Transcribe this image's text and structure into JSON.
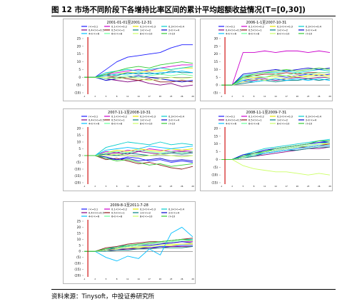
{
  "figure": {
    "title": "图 12  市场不同阶段下各增持比率区间的累计平均超额收益情况(T=[0,30])",
    "source": "资料来源：Tinysoft，中投证券研究所"
  },
  "legend_labels": [
    "r<=0.1",
    "0.1<r<=0.2",
    "0.2<r<=0.3",
    "0.3<r<=0.4",
    "0.4<r<=0.5",
    "0.5<r<=1",
    "1<r<=2",
    "2<r<=4",
    "4<r<=6",
    "6<r<=8",
    "8<r<=10",
    "r>10"
  ],
  "colors": {
    "series": [
      "#1a1aff",
      "#cc00cc",
      "#e6e600",
      "#00cccc",
      "#800080",
      "#8b1a1a",
      "#008080",
      "#0000cc",
      "#00bfff",
      "#66ff99",
      "#ccff66",
      "#33cc33"
    ],
    "event_line": "#cc0000",
    "frame": "#888888"
  },
  "chart_data": [
    {
      "type": "line",
      "title": "2001-01-01至2001-12-31",
      "x_ticks": [
        "-1",
        "2",
        "5",
        "8",
        "11",
        "14",
        "17",
        "20",
        "23",
        "26",
        "29"
      ],
      "x": [
        -1,
        2,
        5,
        8,
        11,
        14,
        17,
        20,
        23,
        26,
        29
      ],
      "ylim": [
        -10,
        25
      ],
      "y_ticks": [
        "25",
        "20",
        "15",
        "10",
        "5",
        "0",
        "(5)",
        "(10)"
      ],
      "y_tick_values": [
        25,
        20,
        15,
        10,
        5,
        0,
        -5,
        -10
      ],
      "event_x": 0,
      "legend": true,
      "series": [
        {
          "color_index": 0,
          "values": [
            0,
            0,
            5,
            10,
            13,
            14,
            15,
            16,
            19,
            21,
            21
          ]
        },
        {
          "color_index": 1,
          "values": [
            0,
            0,
            2,
            3,
            4,
            5,
            4,
            6,
            7,
            8,
            8
          ]
        },
        {
          "color_index": 2,
          "values": [
            0,
            0,
            1,
            2,
            3,
            3,
            4,
            4,
            5,
            6,
            6
          ]
        },
        {
          "color_index": 3,
          "values": [
            0,
            0,
            3,
            4,
            5,
            4,
            5,
            6,
            5,
            6,
            7
          ]
        },
        {
          "color_index": 4,
          "values": [
            0,
            0,
            -1,
            -2,
            -3,
            -2,
            -4,
            -5,
            -4,
            -6,
            -5
          ]
        },
        {
          "color_index": 5,
          "values": [
            0,
            0,
            1,
            0,
            -1,
            -2,
            -1,
            -3,
            -3,
            -2,
            -3
          ]
        },
        {
          "color_index": 6,
          "values": [
            0,
            0,
            2,
            1,
            3,
            2,
            3,
            2,
            4,
            3,
            3
          ]
        },
        {
          "color_index": 7,
          "values": [
            0,
            0,
            -2,
            -1,
            0,
            1,
            0,
            -1,
            -2,
            -3,
            -2
          ]
        },
        {
          "color_index": 8,
          "values": [
            0,
            0,
            1,
            2,
            2,
            3,
            2,
            3,
            3,
            4,
            3
          ]
        },
        {
          "color_index": 9,
          "values": [
            0,
            0,
            -1,
            0,
            1,
            0,
            1,
            2,
            1,
            2,
            1
          ]
        },
        {
          "color_index": 10,
          "values": [
            0,
            0,
            0,
            -1,
            0,
            -1,
            -2,
            -1,
            0,
            -1,
            0
          ]
        },
        {
          "color_index": 11,
          "values": [
            0,
            0,
            2,
            4,
            6,
            7,
            6,
            8,
            9,
            10,
            9
          ]
        }
      ]
    },
    {
      "type": "line",
      "title": "2006-1-1至2007-10-31",
      "x_ticks": [
        "-1",
        "2",
        "5",
        "8",
        "11",
        "14",
        "17",
        "20",
        "23",
        "26",
        "29"
      ],
      "x": [
        -1,
        2,
        5,
        8,
        11,
        14,
        17,
        20,
        23,
        26,
        29
      ],
      "ylim": [
        -5,
        30
      ],
      "y_ticks": [
        "30",
        "25",
        "20",
        "15",
        "10",
        "5",
        "0",
        "(5)"
      ],
      "y_tick_values": [
        30,
        25,
        20,
        15,
        10,
        5,
        0,
        -5
      ],
      "event_x": 0,
      "legend": true,
      "series": [
        {
          "color_index": 0,
          "values": [
            0,
            0,
            3,
            4,
            5,
            6,
            5,
            6,
            7,
            6,
            7
          ]
        },
        {
          "color_index": 1,
          "values": [
            0,
            0,
            21,
            21,
            22,
            21,
            22,
            22,
            21,
            22,
            21
          ]
        },
        {
          "color_index": 2,
          "values": [
            0,
            0,
            4,
            5,
            5,
            6,
            6,
            5,
            6,
            7,
            6
          ]
        },
        {
          "color_index": 3,
          "values": [
            0,
            0,
            6,
            7,
            8,
            8,
            9,
            8,
            9,
            10,
            9
          ]
        },
        {
          "color_index": 4,
          "values": [
            0,
            0,
            2,
            3,
            4,
            3,
            4,
            5,
            4,
            5,
            5
          ]
        },
        {
          "color_index": 5,
          "values": [
            0,
            0,
            5,
            6,
            7,
            7,
            8,
            7,
            8,
            8,
            8
          ]
        },
        {
          "color_index": 6,
          "values": [
            0,
            0,
            1,
            2,
            3,
            2,
            3,
            3,
            4,
            3,
            4
          ]
        },
        {
          "color_index": 7,
          "values": [
            0,
            0,
            7,
            8,
            9,
            10,
            9,
            10,
            11,
            10,
            11
          ]
        },
        {
          "color_index": 8,
          "values": [
            0,
            0,
            3,
            2,
            3,
            4,
            3,
            4,
            3,
            4,
            3
          ]
        },
        {
          "color_index": 9,
          "values": [
            0,
            0,
            4,
            6,
            5,
            7,
            6,
            8,
            7,
            8,
            8
          ]
        },
        {
          "color_index": 10,
          "values": [
            0,
            0,
            2,
            4,
            3,
            5,
            4,
            6,
            5,
            6,
            5
          ]
        },
        {
          "color_index": 11,
          "values": [
            0,
            0,
            5,
            7,
            8,
            9,
            10,
            9,
            10,
            11,
            10
          ]
        }
      ]
    },
    {
      "type": "line",
      "title": "2007-11-1至2008-10-31",
      "x_ticks": [
        "-1",
        "2",
        "5",
        "8",
        "11",
        "14",
        "17",
        "20",
        "23",
        "26",
        "29"
      ],
      "x": [
        -1,
        2,
        5,
        8,
        11,
        14,
        17,
        20,
        23,
        26,
        29
      ],
      "ylim": [
        -20,
        20
      ],
      "y_ticks": [
        "20",
        "15",
        "10",
        "5",
        "0",
        "(5)",
        "(10)",
        "(15)",
        "(20)"
      ],
      "y_tick_values": [
        20,
        15,
        10,
        5,
        0,
        -5,
        -10,
        -15,
        -20
      ],
      "event_x": 0,
      "legend": true,
      "series": [
        {
          "color_index": 0,
          "values": [
            0,
            0,
            -2,
            -3,
            -1,
            -2,
            -4,
            -3,
            -5,
            -4,
            -5
          ]
        },
        {
          "color_index": 1,
          "values": [
            0,
            0,
            3,
            2,
            4,
            3,
            5,
            4,
            3,
            4,
            3
          ]
        },
        {
          "color_index": 2,
          "values": [
            0,
            0,
            2,
            4,
            3,
            5,
            4,
            3,
            5,
            4,
            5
          ]
        },
        {
          "color_index": 3,
          "values": [
            0,
            0,
            6,
            8,
            10,
            9,
            8,
            10,
            8,
            9,
            8
          ]
        },
        {
          "color_index": 4,
          "values": [
            0,
            0,
            1,
            2,
            1,
            3,
            2,
            1,
            2,
            3,
            2
          ]
        },
        {
          "color_index": 5,
          "values": [
            0,
            0,
            -3,
            -2,
            -4,
            -6,
            -5,
            -7,
            -9,
            -10,
            -8
          ]
        },
        {
          "color_index": 6,
          "values": [
            0,
            0,
            1,
            0,
            2,
            1,
            0,
            1,
            2,
            1,
            2
          ]
        },
        {
          "color_index": 7,
          "values": [
            0,
            0,
            -1,
            -3,
            -2,
            -4,
            -3,
            -2,
            -4,
            -3,
            -4
          ]
        },
        {
          "color_index": 8,
          "values": [
            0,
            0,
            4,
            5,
            6,
            5,
            7,
            6,
            5,
            6,
            7
          ]
        },
        {
          "color_index": 9,
          "values": [
            0,
            0,
            2,
            3,
            2,
            4,
            3,
            2,
            3,
            2,
            3
          ]
        },
        {
          "color_index": 10,
          "values": [
            0,
            0,
            0,
            1,
            0,
            -1,
            0,
            1,
            0,
            -1,
            0
          ]
        },
        {
          "color_index": 11,
          "values": [
            0,
            0,
            -2,
            -4,
            -3,
            -5,
            -7,
            -6,
            -8,
            -7,
            -6
          ]
        }
      ]
    },
    {
      "type": "line",
      "title": "2008-11-1至2009-7-31",
      "x_ticks": [
        "-1",
        "2",
        "5",
        "8",
        "11",
        "14",
        "17",
        "20",
        "23",
        "26",
        "29"
      ],
      "x": [
        -1,
        2,
        5,
        8,
        11,
        14,
        17,
        20,
        23,
        26,
        29
      ],
      "ylim": [
        -15,
        20
      ],
      "y_ticks": [
        "20",
        "15",
        "10",
        "5",
        "0",
        "(5)",
        "(10)",
        "(15)"
      ],
      "y_tick_values": [
        20,
        15,
        10,
        5,
        0,
        -5,
        -10,
        -15
      ],
      "event_x": 0,
      "legend": true,
      "series": [
        {
          "color_index": 0,
          "values": [
            0,
            0,
            2,
            4,
            6,
            7,
            8,
            9,
            10,
            11,
            12
          ]
        },
        {
          "color_index": 1,
          "values": [
            0,
            0,
            1,
            3,
            4,
            5,
            6,
            7,
            8,
            9,
            9
          ]
        },
        {
          "color_index": 2,
          "values": [
            0,
            0,
            2,
            3,
            5,
            6,
            7,
            8,
            9,
            10,
            10
          ]
        },
        {
          "color_index": 3,
          "values": [
            0,
            0,
            3,
            5,
            7,
            8,
            9,
            10,
            11,
            12,
            13
          ]
        },
        {
          "color_index": 4,
          "values": [
            0,
            0,
            1,
            2,
            3,
            4,
            5,
            6,
            7,
            7,
            8
          ]
        },
        {
          "color_index": 5,
          "values": [
            0,
            0,
            2,
            4,
            5,
            6,
            7,
            8,
            8,
            9,
            10
          ]
        },
        {
          "color_index": 6,
          "values": [
            0,
            0,
            1,
            2,
            4,
            5,
            6,
            6,
            7,
            8,
            8
          ]
        },
        {
          "color_index": 7,
          "values": [
            0,
            0,
            3,
            4,
            6,
            7,
            8,
            9,
            10,
            11,
            11
          ]
        },
        {
          "color_index": 8,
          "values": [
            0,
            0,
            2,
            3,
            4,
            5,
            6,
            7,
            8,
            9,
            9
          ]
        },
        {
          "color_index": 9,
          "values": [
            0,
            0,
            1,
            3,
            5,
            6,
            7,
            8,
            9,
            10,
            11
          ]
        },
        {
          "color_index": 10,
          "values": [
            0,
            0,
            -4,
            -6,
            -7,
            -8,
            -8,
            -9,
            -10,
            -9,
            -10
          ]
        },
        {
          "color_index": 11,
          "values": [
            0,
            0,
            2,
            4,
            5,
            7,
            8,
            9,
            10,
            12,
            12
          ]
        }
      ]
    },
    {
      "type": "line",
      "title": "2009-8-1至2011-7-28",
      "x_ticks": [
        "-1",
        "2",
        "5",
        "8",
        "11",
        "14",
        "17",
        "20",
        "23",
        "26",
        "29"
      ],
      "x": [
        -1,
        2,
        5,
        8,
        11,
        14,
        17,
        20,
        23,
        26,
        29
      ],
      "ylim": [
        -20,
        25
      ],
      "y_ticks": [
        "25",
        "20",
        "15",
        "10",
        "5",
        "0",
        "(5)",
        "(10)",
        "(15)",
        "(20)"
      ],
      "y_tick_values": [
        25,
        20,
        15,
        10,
        5,
        0,
        -5,
        -10,
        -15,
        -20
      ],
      "event_x": 0,
      "legend": true,
      "series": [
        {
          "color_index": 0,
          "values": [
            0,
            0,
            1,
            2,
            2,
            3,
            3,
            4,
            4,
            5,
            5
          ]
        },
        {
          "color_index": 1,
          "values": [
            0,
            0,
            2,
            3,
            4,
            5,
            6,
            7,
            7,
            8,
            8
          ]
        },
        {
          "color_index": 2,
          "values": [
            0,
            0,
            1,
            2,
            3,
            3,
            4,
            5,
            5,
            6,
            6
          ]
        },
        {
          "color_index": 3,
          "values": [
            0,
            0,
            2,
            4,
            5,
            6,
            7,
            8,
            9,
            10,
            10
          ]
        },
        {
          "color_index": 4,
          "values": [
            0,
            0,
            1,
            1,
            2,
            2,
            3,
            3,
            4,
            4,
            4
          ]
        },
        {
          "color_index": 5,
          "values": [
            0,
            0,
            3,
            4,
            6,
            7,
            8,
            8,
            9,
            10,
            11
          ]
        },
        {
          "color_index": 6,
          "values": [
            0,
            0,
            0,
            1,
            1,
            2,
            2,
            3,
            3,
            3,
            4
          ]
        },
        {
          "color_index": 7,
          "values": [
            0,
            0,
            1,
            3,
            4,
            5,
            5,
            6,
            7,
            8,
            7
          ]
        },
        {
          "color_index": 8,
          "values": [
            0,
            0,
            -5,
            -8,
            -4,
            -6,
            2,
            -3,
            15,
            20,
            12
          ]
        },
        {
          "color_index": 9,
          "values": [
            0,
            0,
            2,
            3,
            4,
            5,
            6,
            7,
            8,
            9,
            9
          ]
        },
        {
          "color_index": 10,
          "values": [
            0,
            0,
            1,
            2,
            3,
            4,
            4,
            5,
            6,
            6,
            7
          ]
        },
        {
          "color_index": 11,
          "values": [
            0,
            0,
            2,
            3,
            5,
            6,
            7,
            8,
            9,
            10,
            9
          ]
        }
      ]
    }
  ]
}
